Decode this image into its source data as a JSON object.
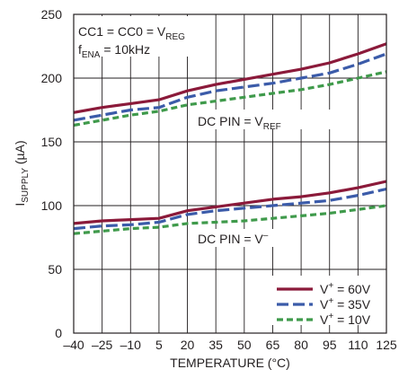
{
  "chart_data": {
    "type": "line",
    "xlabel": "TEMPERATURE (°C)",
    "ylabel": {
      "main": "I",
      "sub": "SUPPLY",
      "unit": " (µA)"
    },
    "xlim": [
      -40,
      125
    ],
    "ylim": [
      0,
      250
    ],
    "x_ticks": [
      "–40",
      "–25",
      "–10",
      "5",
      "20",
      "35",
      "50",
      "65",
      "80",
      "95",
      "110",
      "125"
    ],
    "x_tick_values": [
      -40,
      -25,
      -10,
      5,
      20,
      35,
      50,
      65,
      80,
      95,
      110,
      125
    ],
    "y_ticks": [
      "0",
      "50",
      "100",
      "150",
      "200",
      "250"
    ],
    "y_tick_values": [
      0,
      50,
      100,
      150,
      200,
      250
    ],
    "grid": true,
    "legend_placement": "bottom-right",
    "x": [
      -40,
      -25,
      -10,
      5,
      20,
      35,
      50,
      65,
      80,
      95,
      110,
      125
    ],
    "series": [
      {
        "name": "V+ = 60V",
        "group": "DC PIN = VREF",
        "color": "#8b1a3a",
        "dash": "solid",
        "values": [
          173,
          177,
          180,
          183,
          190,
          195,
          199,
          203,
          207,
          212,
          219,
          227
        ]
      },
      {
        "name": "V+ = 35V",
        "group": "DC PIN = VREF",
        "color": "#3b5ba9",
        "dash": "long",
        "values": [
          167,
          171,
          175,
          177,
          185,
          190,
          193,
          196,
          200,
          204,
          211,
          219
        ]
      },
      {
        "name": "V+ = 10V",
        "group": "DC PIN = VREF",
        "color": "#3f9a4b",
        "dash": "short",
        "values": [
          163,
          167,
          171,
          174,
          179,
          182,
          185,
          188,
          191,
          195,
          200,
          205
        ]
      },
      {
        "name": "V+ = 60V",
        "group": "DC PIN = V–",
        "color": "#8b1a3a",
        "dash": "solid",
        "values": [
          86,
          88,
          89,
          90,
          96,
          99,
          102,
          105,
          107,
          110,
          114,
          119
        ]
      },
      {
        "name": "V+ = 35V",
        "group": "DC PIN = V–",
        "color": "#3b5ba9",
        "dash": "long",
        "values": [
          82,
          84,
          85,
          87,
          93,
          96,
          98,
          100,
          102,
          104,
          108,
          113
        ]
      },
      {
        "name": "V+ = 10V",
        "group": "DC PIN = V–",
        "color": "#3f9a4b",
        "dash": "short",
        "values": [
          78,
          80,
          82,
          83,
          86,
          87,
          88,
          90,
          92,
          94,
          97,
          100
        ]
      }
    ],
    "legend": [
      {
        "pre": "V",
        "sup": "+",
        "post": " = 60V",
        "color": "#8b1a3a",
        "dash": "solid"
      },
      {
        "pre": "V",
        "sup": "+",
        "post": " = 35V",
        "color": "#3b5ba9",
        "dash": "long"
      },
      {
        "pre": "V",
        "sup": "+",
        "post": " = 10V",
        "color": "#3f9a4b",
        "dash": "short"
      }
    ],
    "annotations": {
      "condition1": {
        "pre": "CC1 = CC0 = V",
        "sub": "REG"
      },
      "condition2": {
        "pre": "f",
        "sub": "ENA",
        "post": " = 10kHz"
      },
      "group_upper": {
        "pre": "DC PIN = V",
        "sub": "REF"
      },
      "group_lower": {
        "pre": "DC PIN = V",
        "sup": "–"
      }
    }
  }
}
